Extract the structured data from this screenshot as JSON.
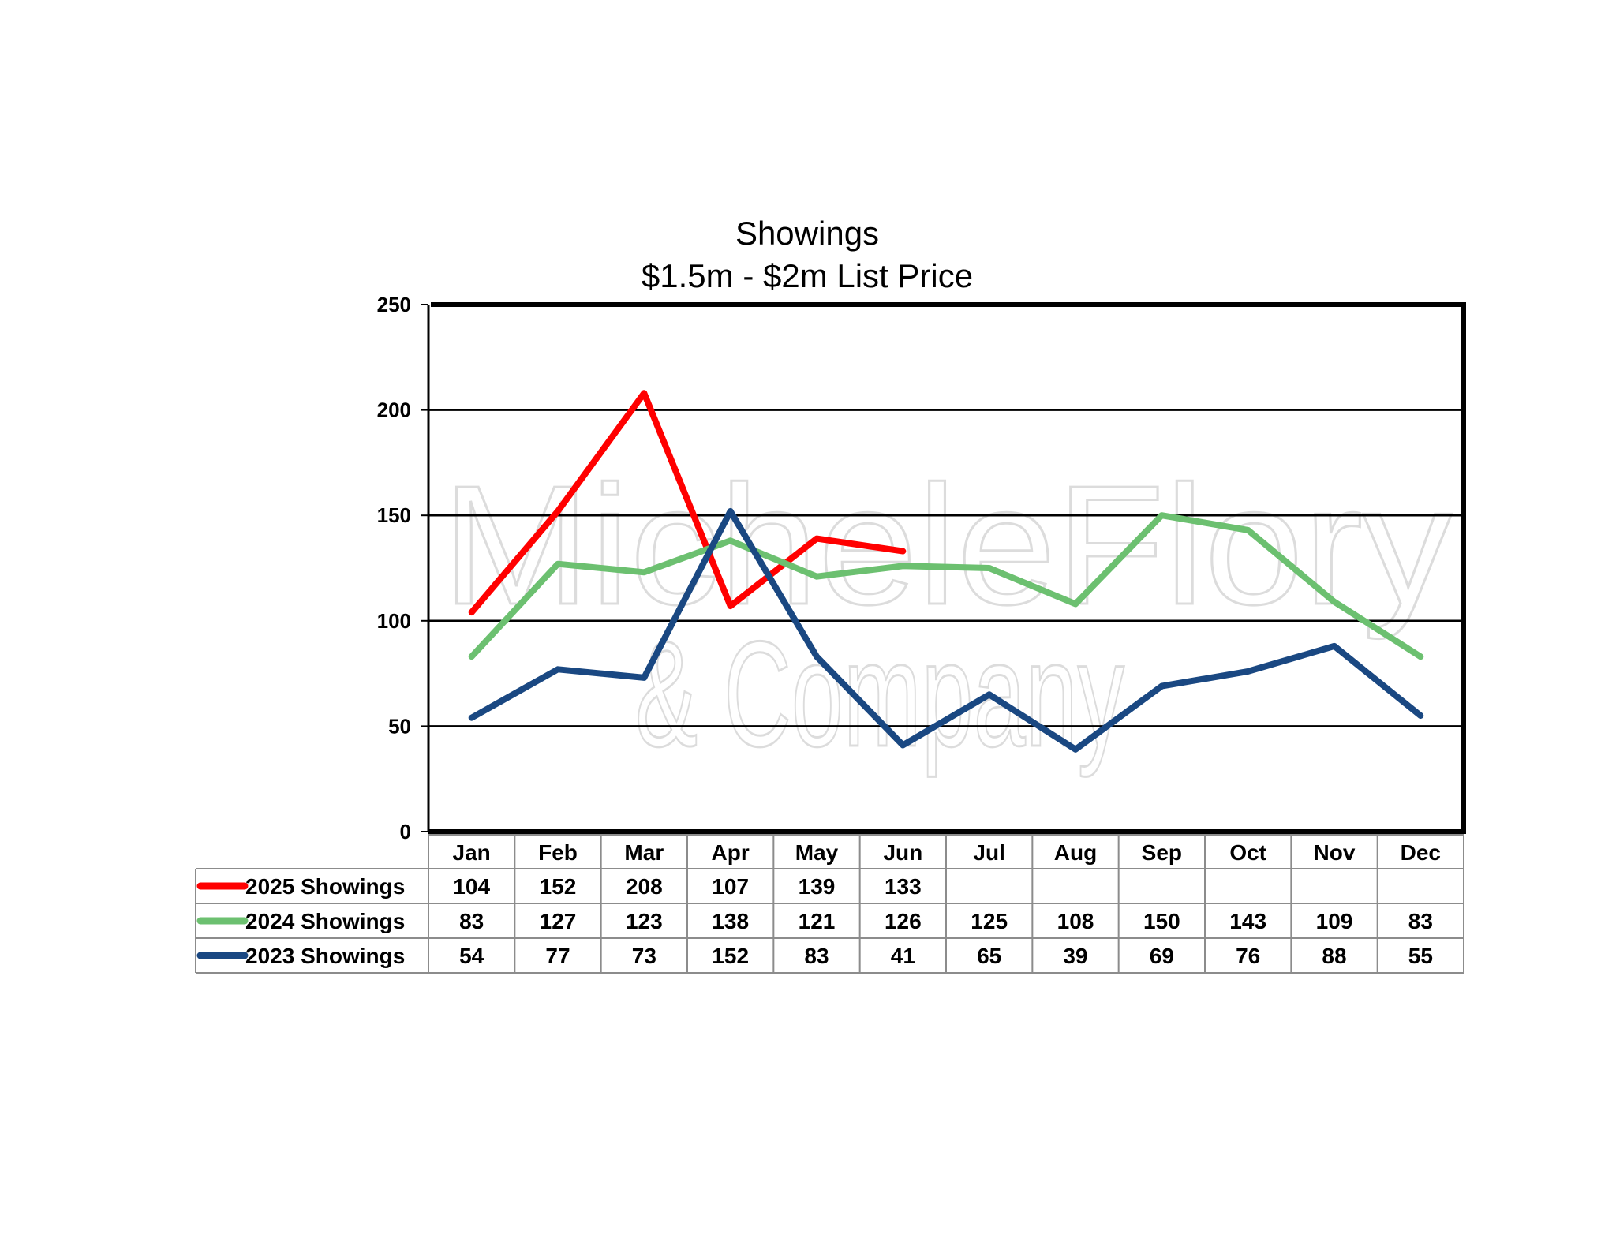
{
  "chart_data": {
    "type": "line",
    "title": [
      "Showings",
      "$1.5m - $2m List Price"
    ],
    "watermark": [
      "MicheleFlory",
      "& Company"
    ],
    "categories": [
      "Jan",
      "Feb",
      "Mar",
      "Apr",
      "May",
      "Jun",
      "Jul",
      "Aug",
      "Sep",
      "Oct",
      "Nov",
      "Dec"
    ],
    "ylim": [
      0,
      250
    ],
    "yticks": [
      0,
      50,
      100,
      150,
      200,
      250
    ],
    "grid": true,
    "legend": "data-table",
    "series": [
      {
        "name": "2025 Showings",
        "color": "#ff0000",
        "values": [
          104,
          152,
          208,
          107,
          139,
          133,
          null,
          null,
          null,
          null,
          null,
          null
        ]
      },
      {
        "name": "2024 Showings",
        "color": "#6cc070",
        "values": [
          83,
          127,
          123,
          138,
          121,
          126,
          125,
          108,
          150,
          143,
          109,
          83
        ]
      },
      {
        "name": "2023 Showings",
        "color": "#1a4882",
        "values": [
          54,
          77,
          73,
          152,
          83,
          41,
          65,
          39,
          69,
          76,
          88,
          55
        ]
      }
    ]
  }
}
